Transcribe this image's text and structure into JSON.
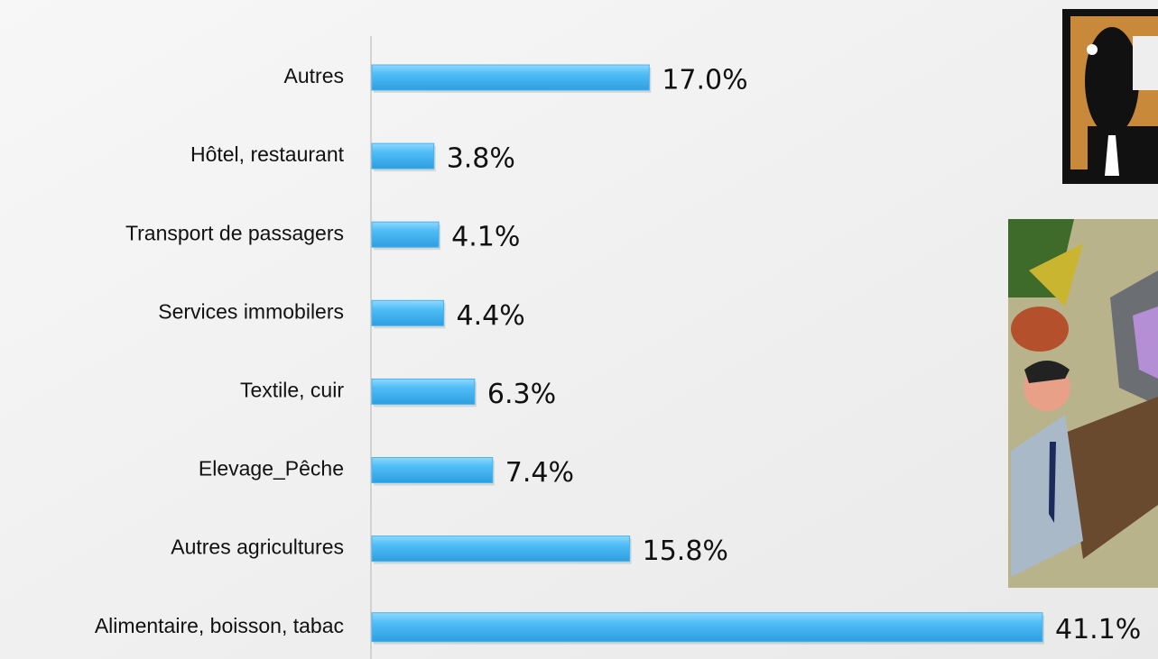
{
  "chart_data": {
    "type": "bar",
    "orientation": "horizontal",
    "categories": [
      "Autres",
      "Hôtel, restaurant",
      "Transport de passagers",
      "Services immobilers",
      "Textile, cuir",
      "Elevage_Pêche",
      "Autres agricultures",
      "Alimentaire, boisson, tabac"
    ],
    "values": [
      17.0,
      3.8,
      4.1,
      4.4,
      6.3,
      7.4,
      15.8,
      41.1
    ],
    "value_labels": [
      "17.0%",
      "3.8%",
      "4.1%",
      "4.4%",
      "6.3%",
      "7.4%",
      "15.8%",
      "41.1%"
    ],
    "color": "#45b4f0"
  }
}
